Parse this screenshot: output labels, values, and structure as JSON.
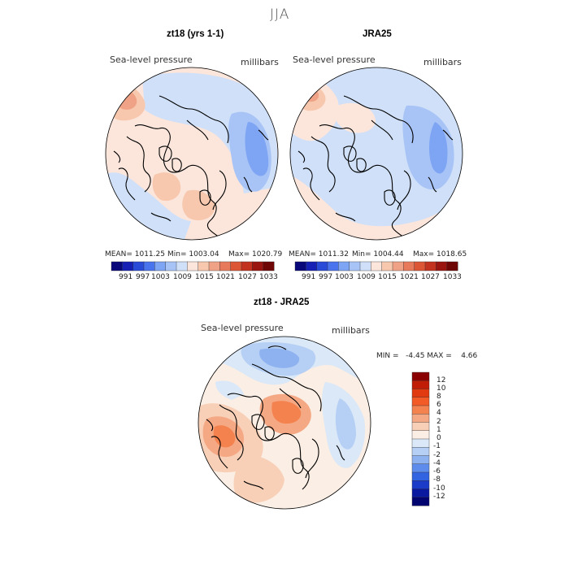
{
  "figure_title": "JJA",
  "chart_data": [
    {
      "type": "polar-contour-map",
      "title": "zt18 (yrs 1-1)",
      "variable": "Sea-level pressure",
      "units": "millibars",
      "stats": {
        "mean_text": "MEAN= 1011.25",
        "min_text": "Min= 1003.04",
        "max_text": "Max= 1020.79",
        "mean": 1011.25,
        "min": 1003.04,
        "max": 1020.79
      },
      "colorbar_ticks": [
        "991",
        "997",
        "1003",
        "1009",
        "1015",
        "1021",
        "1027",
        "1033"
      ]
    },
    {
      "type": "polar-contour-map",
      "title": "JRA25",
      "variable": "Sea-level pressure",
      "units": "millibars",
      "stats": {
        "mean_text": "MEAN= 1011.32",
        "min_text": "Min= 1004.44",
        "max_text": "Max= 1018.65",
        "mean": 1011.32,
        "min": 1004.44,
        "max": 1018.65
      },
      "colorbar_ticks": [
        "991",
        "997",
        "1003",
        "1009",
        "1015",
        "1021",
        "1027",
        "1033"
      ]
    },
    {
      "type": "polar-contour-map",
      "title": "zt18 - JRA25",
      "variable": "Sea-level pressure",
      "units": "millibars",
      "stats": {
        "minmax_text": "MIN =   -4.45 MAX =    4.66",
        "min": -4.45,
        "max": 4.66
      },
      "colorbar_ticks": [
        "12",
        "10",
        "8",
        "6",
        "4",
        "2",
        "1",
        "0",
        "-1",
        "-2",
        "-4",
        "-6",
        "-8",
        "-10",
        "-12"
      ]
    }
  ],
  "colors": {
    "abs_scale": [
      "#08087a",
      "#1620b4",
      "#2a4ad8",
      "#4a74ee",
      "#7ea4f4",
      "#a8c4f6",
      "#cfe0f8",
      "#fce6dc",
      "#f7c8ae",
      "#f0a286",
      "#e87a5c",
      "#dc5636",
      "#c2321e",
      "#9a1410",
      "#6e0606"
    ],
    "diff_scale": [
      "#8a0000",
      "#c01c06",
      "#e23a10",
      "#f25a26",
      "#f4824e",
      "#f5a884",
      "#f8d0b8",
      "#fbeee4",
      "#dae8f8",
      "#b6cff4",
      "#8eb2f0",
      "#5e8cec",
      "#3264e2",
      "#1a3cc8",
      "#0a1aa0",
      "#020470"
    ]
  }
}
